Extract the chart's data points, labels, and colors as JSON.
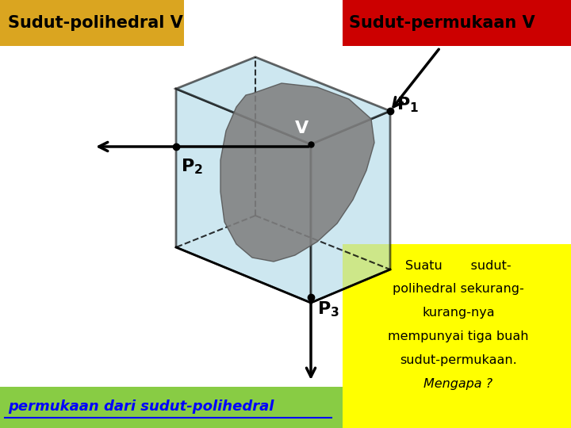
{
  "bg_color": "#ffffff",
  "top_left_box_color": "#DAA520",
  "top_right_box_color": "#cc0000",
  "bottom_left_box_color": "#88cc44",
  "bottom_right_box_color": "#ffff00",
  "top_left_label": "Sudut-polihedral V",
  "top_right_label": "Sudut-permukaan V",
  "bottom_left_label": "permukaan dari sudut-polihedral",
  "cube_face_color": "#add8e6",
  "cube_face_alpha": 0.6,
  "blob_color": "#808080",
  "blob_alpha": 0.88,
  "line_color": "#000000"
}
